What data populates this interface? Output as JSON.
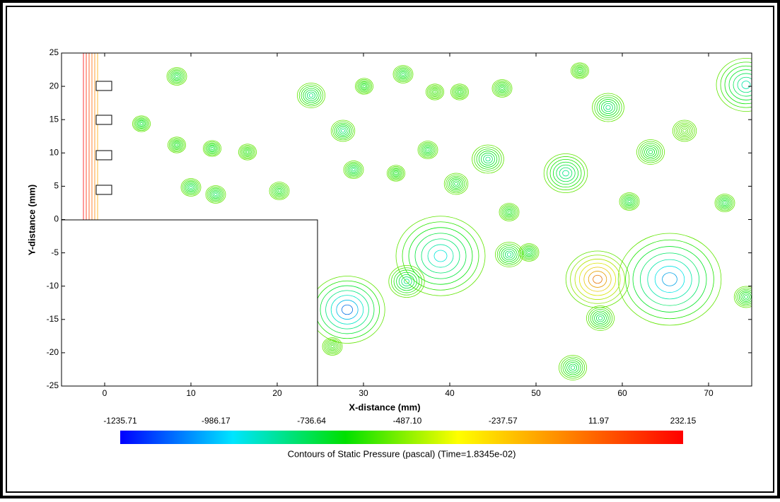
{
  "chart_data": {
    "type": "contour",
    "title": "Contours of Static Pressure (pascal)  (Time=1.8345e-02)",
    "x_label": "X-distance (mm)",
    "y_label": "Y-distance (mm)",
    "xlim": [
      -5,
      75
    ],
    "xticks": [
      0,
      10,
      20,
      30,
      40,
      50,
      60,
      70
    ],
    "ylim": [
      -25,
      25
    ],
    "yticks": [
      -25,
      -20,
      -15,
      -10,
      -5,
      0,
      5,
      10,
      15,
      20,
      25
    ],
    "clim": [
      -1235.71,
      232.15
    ],
    "cticks": [
      -1235.71,
      -986.17,
      -736.64,
      {
        "value": -487.1,
        "label": "-487.10"
      },
      -237.57,
      11.97,
      232.15
    ],
    "colormap": [
      "#0000ff",
      "#00e5ff",
      "#00e000",
      "#ffff00",
      "#ff8000",
      "#ff0000"
    ]
  }
}
